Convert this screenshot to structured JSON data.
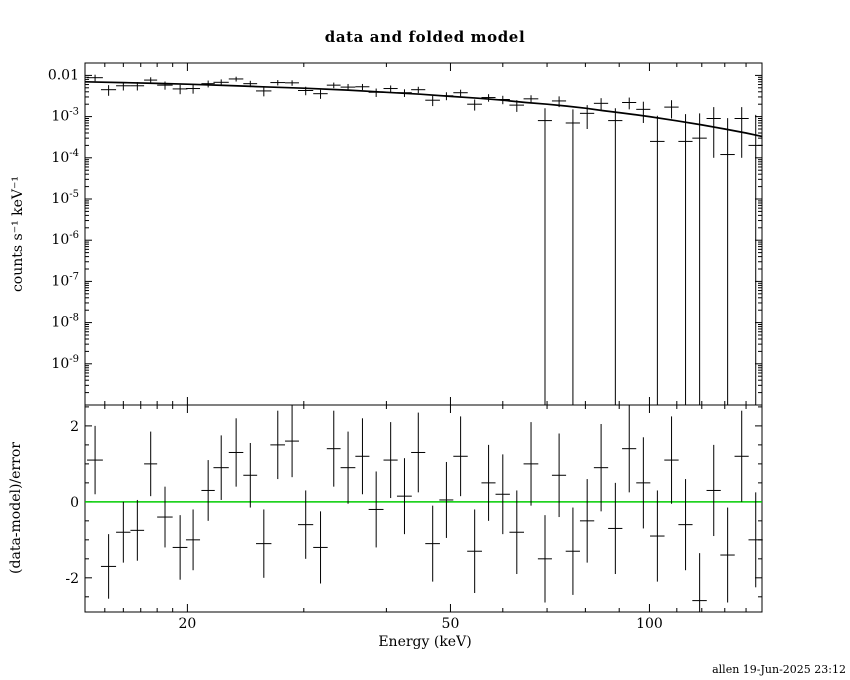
{
  "page": {
    "footer": "allen 19-Jun-2025 23:12",
    "background": "#ffffff",
    "foreground": "#000000"
  },
  "chart_data": [
    {
      "type": "scatter",
      "name": "spectrum",
      "title": "data and folded model",
      "xlabel": "Energy (keV)",
      "ylabel": "counts s⁻¹ keV⁻¹",
      "xscale": "log",
      "yscale": "log",
      "xlim": [
        14,
        148
      ],
      "ylim": [
        1e-10,
        0.02
      ],
      "x_major_ticks": [
        20,
        50,
        100
      ],
      "x_minor_ticks": [
        15,
        16,
        17,
        18,
        19,
        30,
        40,
        60,
        70,
        80,
        90,
        110,
        120,
        130,
        140
      ],
      "y_labeled_decades": [
        -2,
        -3,
        -4,
        -5,
        -6,
        -7,
        -8,
        -9
      ],
      "x": [
        14.5,
        15.2,
        16.0,
        16.8,
        17.6,
        18.5,
        19.5,
        20.4,
        21.5,
        22.5,
        23.7,
        24.9,
        26.1,
        27.4,
        28.8,
        30.2,
        31.8,
        33.3,
        35.0,
        36.8,
        38.6,
        40.6,
        42.6,
        44.7,
        47.0,
        49.3,
        51.8,
        54.4,
        57.1,
        60.0,
        63.0,
        66.2,
        69.5,
        73.0,
        76.6,
        80.5,
        84.5,
        88.8,
        93.2,
        97.9,
        102.8,
        108.0,
        113.4,
        119.1,
        125.1,
        131.3,
        137.9,
        144.8
      ],
      "xerr": [
        0.4,
        0.4,
        0.4,
        0.4,
        0.4,
        0.5,
        0.5,
        0.5,
        0.5,
        0.6,
        0.6,
        0.6,
        0.7,
        0.7,
        0.7,
        0.8,
        0.8,
        0.8,
        0.9,
        0.9,
        1.0,
        1.0,
        1.1,
        1.1,
        1.2,
        1.2,
        1.3,
        1.4,
        1.4,
        1.5,
        1.6,
        1.7,
        1.7,
        1.8,
        1.9,
        2.0,
        2.1,
        2.2,
        2.3,
        2.4,
        2.6,
        2.7,
        2.8,
        3.0,
        3.1,
        3.3,
        3.4,
        3.6
      ],
      "y": [
        0.0088,
        0.0045,
        0.0056,
        0.0056,
        0.0077,
        0.0058,
        0.0047,
        0.0048,
        0.0063,
        0.0068,
        0.0082,
        0.0063,
        0.0042,
        0.0067,
        0.0066,
        0.0043,
        0.0036,
        0.0058,
        0.0052,
        0.0053,
        0.0039,
        0.0048,
        0.0038,
        0.0045,
        0.0025,
        0.0032,
        0.0038,
        0.002,
        0.0029,
        0.0026,
        0.0019,
        0.0027,
        0.0008,
        0.0024,
        0.0007,
        0.0012,
        0.0021,
        0.0008,
        0.0022,
        0.0015,
        0.00025,
        0.0017,
        0.00025,
        0.0003,
        0.0009,
        0.00012,
        0.0009,
        0.0002
      ],
      "yerr": [
        0.0016,
        0.0013,
        0.0013,
        0.0013,
        0.0013,
        0.0013,
        0.0012,
        0.0012,
        0.0012,
        0.0012,
        0.0011,
        0.0011,
        0.0011,
        0.001,
        0.001,
        0.001,
        0.0009,
        0.0009,
        0.001,
        0.0009,
        0.0009,
        0.0009,
        0.0008,
        0.0008,
        0.0007,
        0.0007,
        0.0007,
        0.0006,
        0.0006,
        0.0006,
        0.0006,
        0.0006,
        0.0008,
        0.0007,
        0.0008,
        0.0007,
        0.0007,
        0.0008,
        0.0007,
        0.0008,
        0.0008,
        0.0008,
        0.0009,
        0.0009,
        0.0008,
        0.0008,
        0.0008,
        0.0009
      ],
      "model": {
        "color": "#000000",
        "x": [
          14,
          16,
          18,
          20,
          23,
          26,
          30,
          35,
          40,
          45,
          50,
          55,
          60,
          65,
          70,
          75,
          80,
          85,
          90,
          95,
          100,
          110,
          120,
          130,
          140,
          148
        ],
        "y": [
          0.007,
          0.0067,
          0.0064,
          0.0061,
          0.0057,
          0.0053,
          0.0049,
          0.0044,
          0.0039,
          0.0035,
          0.0031,
          0.0028,
          0.0025,
          0.0022,
          0.002,
          0.0018,
          0.0016,
          0.0014,
          0.00125,
          0.00112,
          0.001,
          0.00079,
          0.00063,
          0.0005,
          0.0004,
          0.00033
        ]
      }
    },
    {
      "type": "scatter",
      "name": "residuals",
      "ylabel": "(data-model)/error",
      "xscale": "log",
      "yscale": "linear",
      "xlim": [
        14,
        148
      ],
      "ylim": [
        -2.9,
        2.55
      ],
      "y_major_ticks": [
        -2,
        0,
        2
      ],
      "y_minor_step": 0.5,
      "x": [
        14.5,
        15.2,
        16.0,
        16.8,
        17.6,
        18.5,
        19.5,
        20.4,
        21.5,
        22.5,
        23.7,
        24.9,
        26.1,
        27.4,
        28.8,
        30.2,
        31.8,
        33.3,
        35.0,
        36.8,
        38.6,
        40.6,
        42.6,
        44.7,
        47.0,
        49.3,
        51.8,
        54.4,
        57.1,
        60.0,
        63.0,
        66.2,
        69.5,
        73.0,
        76.6,
        80.5,
        84.5,
        88.8,
        93.2,
        97.9,
        102.8,
        108.0,
        113.4,
        119.1,
        125.1,
        131.3,
        137.9,
        144.8
      ],
      "xerr": [
        0.4,
        0.4,
        0.4,
        0.4,
        0.4,
        0.5,
        0.5,
        0.5,
        0.5,
        0.6,
        0.6,
        0.6,
        0.7,
        0.7,
        0.7,
        0.8,
        0.8,
        0.8,
        0.9,
        0.9,
        1.0,
        1.0,
        1.1,
        1.1,
        1.2,
        1.2,
        1.3,
        1.4,
        1.4,
        1.5,
        1.6,
        1.7,
        1.7,
        1.8,
        1.9,
        2.0,
        2.1,
        2.2,
        2.3,
        2.4,
        2.6,
        2.7,
        2.8,
        3.0,
        3.1,
        3.3,
        3.4,
        3.6
      ],
      "y": [
        1.1,
        -1.7,
        -0.8,
        -0.75,
        1.0,
        -0.4,
        -1.2,
        -1.0,
        0.3,
        0.9,
        1.3,
        0.7,
        -1.1,
        1.5,
        1.6,
        -0.6,
        -1.2,
        1.4,
        0.9,
        1.2,
        -0.2,
        1.1,
        0.15,
        1.3,
        -1.1,
        0.05,
        1.2,
        -1.3,
        0.5,
        0.2,
        -0.8,
        1.0,
        -1.5,
        0.7,
        -1.3,
        -0.5,
        0.9,
        -0.7,
        1.4,
        0.5,
        -0.9,
        1.1,
        -0.6,
        -2.6,
        0.3,
        -1.4,
        1.2,
        -1.0
      ],
      "yerr": [
        0.9,
        0.85,
        0.8,
        0.8,
        0.85,
        0.8,
        0.85,
        0.8,
        0.8,
        0.85,
        0.9,
        0.85,
        0.9,
        0.9,
        0.95,
        0.9,
        0.95,
        1.0,
        0.95,
        1.0,
        1.0,
        1.0,
        1.0,
        1.05,
        1.0,
        1.0,
        1.05,
        1.1,
        1.0,
        1.05,
        1.1,
        1.1,
        1.15,
        1.1,
        1.15,
        1.1,
        1.15,
        1.2,
        1.15,
        1.2,
        1.2,
        1.15,
        1.2,
        1.25,
        1.2,
        1.25,
        1.2,
        1.25
      ],
      "zero_line": {
        "y": 0,
        "color": "#00cc00"
      }
    }
  ]
}
